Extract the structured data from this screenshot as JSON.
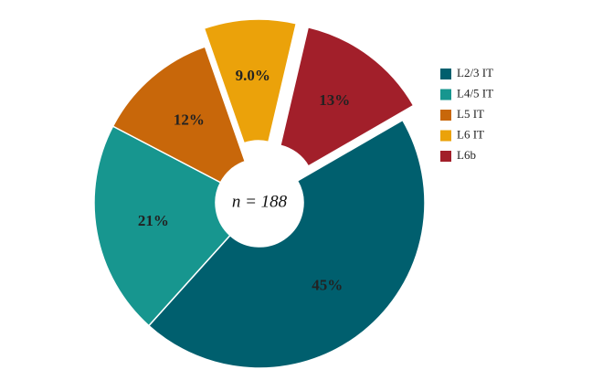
{
  "chart_data": {
    "type": "donut",
    "categories": [
      "L2/3 IT",
      "L4/5 IT",
      "L5 IT",
      "L6 IT",
      "L6b"
    ],
    "values": [
      45,
      21,
      12,
      9,
      13
    ],
    "value_labels": [
      "45%",
      "21%",
      "12%",
      "9.0%",
      "13%"
    ],
    "colors": [
      "#005f6e",
      "#17968f",
      "#c8670a",
      "#eba20a",
      "#a21f2a"
    ],
    "explode": [
      false,
      false,
      false,
      true,
      true
    ],
    "center_label": "n = 188",
    "legend": "right"
  }
}
